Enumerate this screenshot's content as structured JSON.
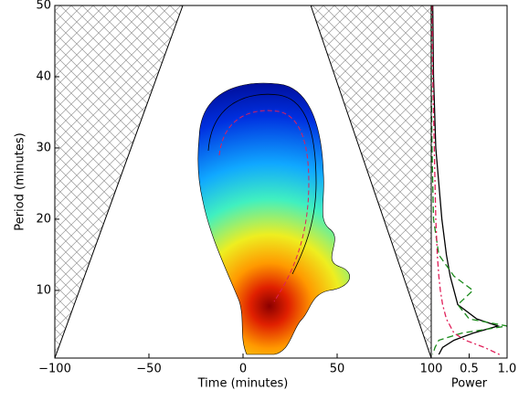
{
  "chart_data": [
    {
      "type": "heatmap",
      "xlabel": "Time (minutes)",
      "ylabel": "Period (minutes)",
      "xlim": [
        -100,
        100
      ],
      "ylim": [
        0.5,
        50
      ],
      "xticks": [
        {
          "value": -100,
          "label": "−100"
        },
        {
          "value": -50,
          "label": "−50"
        },
        0,
        50,
        100
      ],
      "yticks": [
        10,
        20,
        30,
        40,
        50
      ],
      "coi": {
        "x": [
          -100,
          -32,
          36,
          100
        ],
        "y": [
          0.5,
          50,
          50,
          0.5
        ]
      }
    },
    {
      "type": "line",
      "xlabel": "Power",
      "xlim": [
        0,
        1
      ],
      "ylim": [
        0.5,
        50
      ],
      "xticks": [
        0.5,
        {
          "value": 1.0,
          "label": "1.0"
        }
      ],
      "y": [
        50,
        40,
        30,
        25,
        20,
        15,
        12,
        10,
        8,
        6,
        5,
        4,
        3,
        2,
        1
      ],
      "series": [
        {
          "color": "#000000",
          "dash": "none",
          "values": [
            0.02,
            0.03,
            0.06,
            0.1,
            0.14,
            0.2,
            0.25,
            0.3,
            0.35,
            0.6,
            0.88,
            0.55,
            0.3,
            0.15,
            0.1
          ]
        },
        {
          "color": "#1a8a1a",
          "dash": "7 4",
          "values": [
            0,
            0,
            0.01,
            0.02,
            0.03,
            0.1,
            0.3,
            0.55,
            0.35,
            0.5,
            1.0,
            0.4,
            0.1,
            0.05,
            0.02
          ]
        },
        {
          "color": "#e0205a",
          "dash": "6 3 2 3",
          "values": [
            0.01,
            0.02,
            0.04,
            0.05,
            0.06,
            0.08,
            0.1,
            0.12,
            0.15,
            0.2,
            0.25,
            0.3,
            0.45,
            0.7,
            0.9
          ]
        }
      ]
    }
  ]
}
